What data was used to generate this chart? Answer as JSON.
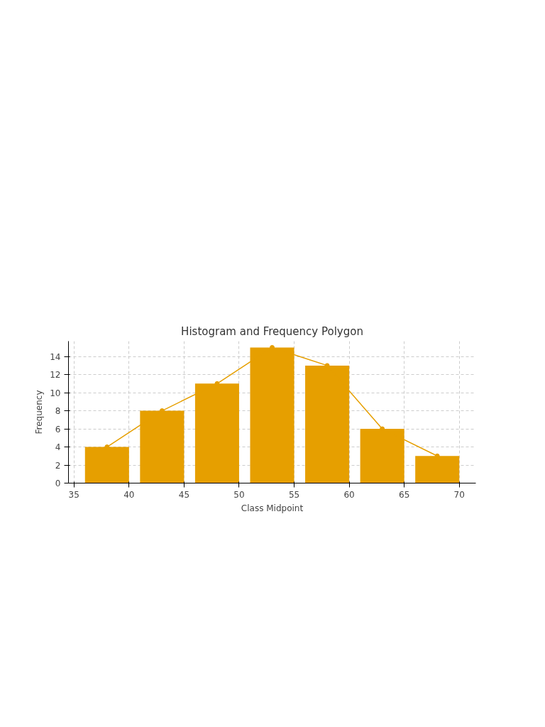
{
  "chart_data": {
    "type": "bar",
    "title": "Histogram and Frequency Polygon",
    "xlabel": "Class Midpoint",
    "ylabel": "Frequency",
    "x": [
      38,
      43,
      48,
      53,
      58,
      63,
      68
    ],
    "series": [
      {
        "color": "#e69f00",
        "values": [
          4,
          8,
          11,
          15,
          13,
          6,
          3
        ]
      },
      {
        "type": "line",
        "color": "#e69f00",
        "marker": "circle",
        "line_style": "solid",
        "values": [
          4,
          8,
          11,
          15,
          13,
          6,
          3
        ]
      }
    ],
    "xlim": [
      34.5,
      71.5
    ],
    "ylim": [
      0,
      15.7
    ],
    "xticks": [
      35,
      40,
      45,
      50,
      55,
      60,
      65,
      70
    ],
    "yticks": [
      0,
      2,
      4,
      6,
      8,
      10,
      12,
      14
    ],
    "grid": true
  }
}
